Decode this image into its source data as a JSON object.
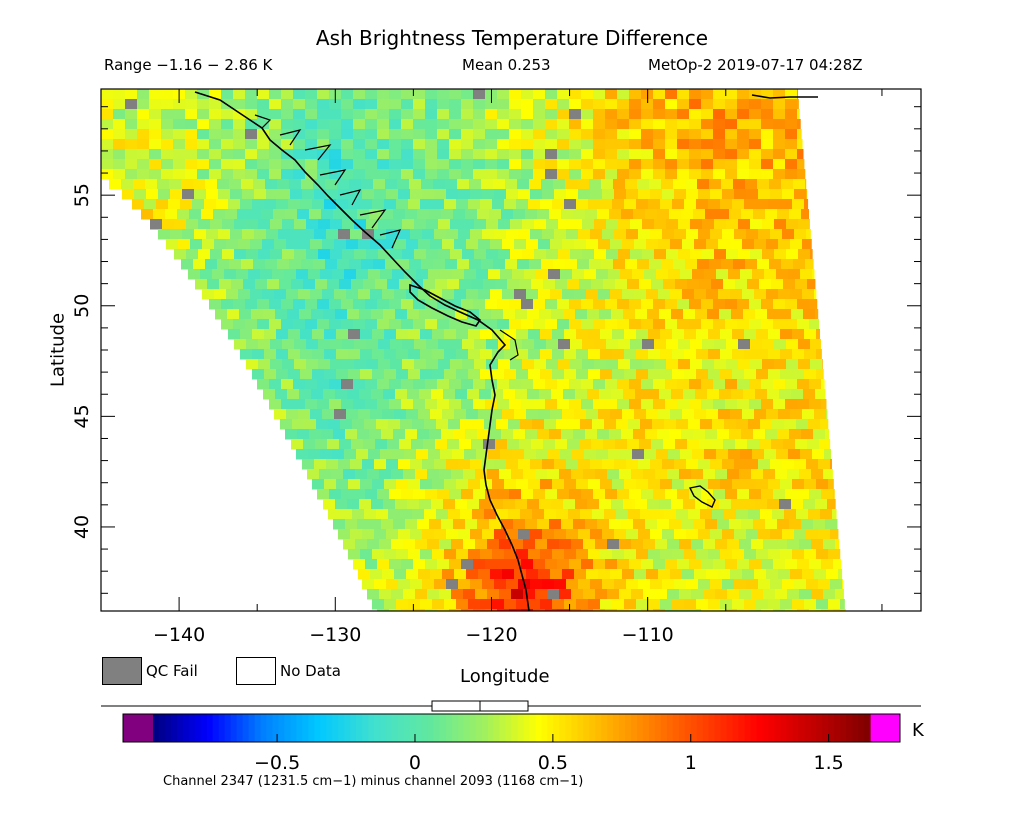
{
  "chart_data": {
    "type": "heatmap",
    "title": "Ash Brightness Temperature Difference",
    "range_text": "Range −1.16 − 2.86 K",
    "mean_text": "Mean 0.253",
    "satellite_text": "MetOp-2 2019-07-17 04:28Z",
    "xlabel": "Longitude",
    "ylabel": "Latitude",
    "xlim": [
      -145,
      -92.5
    ],
    "ylim": [
      36.2,
      59.8
    ],
    "x_ticks": [
      -140,
      -130,
      -120,
      -110
    ],
    "x_tick_labels": [
      "−140",
      "−130",
      "−120",
      "−110"
    ],
    "y_ticks": [
      40,
      45,
      50,
      55
    ],
    "y_tick_labels": [
      "40",
      "45",
      "50",
      "55"
    ],
    "colorbar": {
      "unit": "K",
      "range": [
        -0.95,
        1.65
      ],
      "ticks": [
        -0.5,
        0,
        0.5,
        1,
        1.5
      ],
      "tick_labels": [
        "−0.5",
        "0",
        "0.5",
        "1",
        "1.5"
      ],
      "colors": [
        "#000080",
        "#0000ff",
        "#0080ff",
        "#00c8ff",
        "#40e0d0",
        "#60e8a0",
        "#a0f060",
        "#ffff00",
        "#ffc000",
        "#ff8000",
        "#ff4000",
        "#ff0000",
        "#c00000",
        "#800000"
      ],
      "underflow_color": "#800080",
      "overflow_color": "#ff00ff",
      "caption": "Channel 2347 (1231.5 cm−1) minus channel 2093 (1168 cm−1)"
    },
    "legend": {
      "qc_fail_label": "QC Fail",
      "qc_fail_color": "#808080",
      "no_data_label": "No Data",
      "no_data_color": "#ffffff"
    },
    "swath_field": {
      "description_values": "BTD values (K) on a coarse lat/lon grid; rows top→bottom from 59 to 37 lat, cols -144 to -106 lon",
      "lat_rows": [
        58,
        55,
        52,
        49,
        46,
        43,
        40,
        37.5
      ],
      "lon_cols": [
        -142,
        -136,
        -130,
        -124,
        -118,
        -112,
        -107
      ],
      "values": [
        [
          0.35,
          0.25,
          0.05,
          0.15,
          0.35,
          0.55,
          0.7
        ],
        [
          0.45,
          0.2,
          -0.1,
          0.1,
          0.25,
          0.5,
          0.65
        ],
        [
          0.4,
          0.15,
          -0.05,
          0.1,
          0.25,
          0.45,
          0.6
        ],
        [
          0.35,
          0.15,
          0.0,
          0.15,
          0.3,
          0.4,
          0.55
        ],
        [
          0.3,
          0.2,
          0.05,
          0.2,
          0.35,
          0.45,
          0.5
        ],
        [
          0.4,
          0.3,
          0.1,
          0.3,
          0.55,
          0.45,
          0.55
        ],
        [
          0.35,
          0.3,
          0.2,
          0.4,
          0.85,
          0.5,
          0.45
        ],
        [
          0.3,
          0.3,
          0.25,
          0.45,
          1.3,
          0.55,
          0.4
        ]
      ]
    }
  }
}
